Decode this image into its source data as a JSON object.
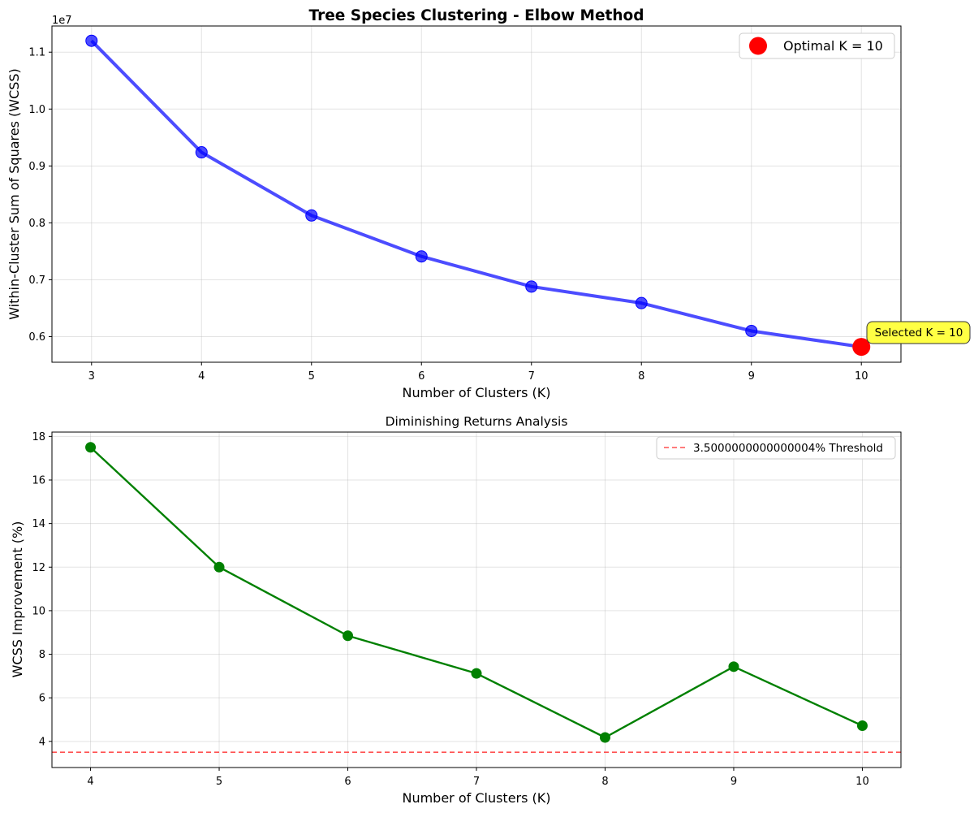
{
  "chart_data": [
    {
      "type": "line",
      "title": "Tree Species Clustering - Elbow Method",
      "xlabel": "Number of Clusters (K)",
      "ylabel": "Within-Cluster Sum of Squares (WCSS)",
      "y_offset_label": "1e7",
      "x": [
        3,
        4,
        5,
        6,
        7,
        8,
        9,
        10
      ],
      "series": [
        {
          "values": [
            11200000,
            9240000,
            8130000,
            7410000,
            6880000,
            6590000,
            6100000,
            5820000
          ],
          "color": "#0000ff"
        }
      ],
      "xlim": [
        2.64,
        10.36
      ],
      "ylim": [
        5550000,
        11460000
      ],
      "xticks": [
        3,
        4,
        5,
        6,
        7,
        8,
        9,
        10
      ],
      "yticks": [
        6000000,
        7000000,
        8000000,
        9000000,
        10000000,
        11000000
      ],
      "ytick_labels": [
        "0.6",
        "0.7",
        "0.8",
        "0.9",
        "1.0",
        "1.1"
      ],
      "highlight": {
        "x": 10,
        "y": 5820000,
        "color": "#ff0000"
      },
      "legend": {
        "label": "Optimal K = 10",
        "placement": "top-right"
      },
      "annotation": {
        "text": "Selected K = 10",
        "background": "#ffff44"
      },
      "grid": true
    },
    {
      "type": "line",
      "title": "Diminishing Returns Analysis",
      "xlabel": "Number of Clusters (K)",
      "ylabel": "WCSS Improvement (%)",
      "x": [
        4,
        5,
        6,
        7,
        8,
        9,
        10
      ],
      "series": [
        {
          "values": [
            17.5,
            12.0,
            8.85,
            7.12,
            4.18,
            7.43,
            4.72
          ],
          "color": "#008000"
        }
      ],
      "threshold": {
        "value": 3.5,
        "color": "#ff3333",
        "label": "3.5000000000000004% Threshold"
      },
      "xlim": [
        3.7,
        10.3
      ],
      "ylim": [
        2.8,
        18.2
      ],
      "xticks": [
        4,
        5,
        6,
        7,
        8,
        9,
        10
      ],
      "yticks": [
        4,
        6,
        8,
        10,
        12,
        14,
        16,
        18
      ],
      "legend": {
        "placement": "top-right"
      },
      "grid": true
    }
  ]
}
